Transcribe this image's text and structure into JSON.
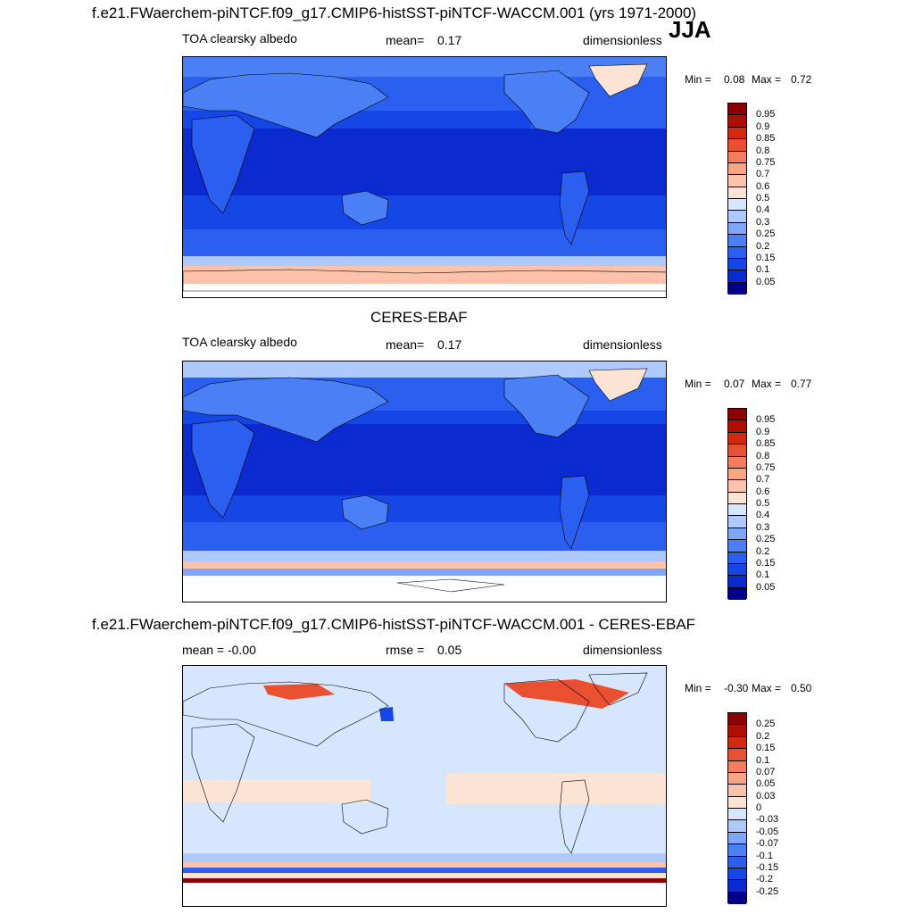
{
  "header": {
    "title": "f.e21.FWaerchem-piNTCF.f09_g17.CMIP6-histSST-piNTCF-WACCM.001 (yrs 1971-2000)",
    "season": "JJA"
  },
  "panels": [
    {
      "id": "model",
      "section_title": "",
      "left": "TOA clearsky albedo",
      "center_label": "mean=",
      "center_value": "0.17",
      "right": "dimensionless",
      "min_label": "Min =",
      "min_value": "0.08",
      "max_label": "Max =",
      "max_value": "0.72"
    },
    {
      "id": "obs",
      "section_title": "CERES-EBAF",
      "left": "TOA clearsky albedo",
      "center_label": "mean=",
      "center_value": "0.17",
      "right": "dimensionless",
      "min_label": "Min =",
      "min_value": "0.07",
      "max_label": "Max =",
      "max_value": "0.77"
    },
    {
      "id": "diff",
      "section_title": "f.e21.FWaerchem-piNTCF.f09_g17.CMIP6-histSST-piNTCF-WACCM.001 - CERES-EBAF",
      "left": "mean =  -0.00",
      "center_label": "rmse =",
      "center_value": "0.05",
      "right": "dimensionless",
      "min_label": "Min =",
      "min_value": "-0.30",
      "max_label": "Max =",
      "max_value": "0.50"
    }
  ],
  "chart_data": [
    {
      "type": "heatmap",
      "title": "TOA clearsky albedo",
      "map": "global lat-lon, Pacific-centered",
      "units": "dimensionless",
      "mean": 0.17,
      "min": 0.08,
      "max": 0.72,
      "colorbar_levels": [
        "0.05",
        "0.1",
        "0.15",
        "0.2",
        "0.25",
        "0.3",
        "0.4",
        "0.5",
        "0.6",
        "0.7",
        "0.75",
        "0.8",
        "0.85",
        "0.9",
        "0.95"
      ],
      "colorbar_colors": [
        "#00008b",
        "#0b2ad0",
        "#1546e6",
        "#2a5ff0",
        "#4a7ff6",
        "#7ea7fb",
        "#adc9fd",
        "#d6e6fe",
        "#fde3d3",
        "#fdc3aa",
        "#fba482",
        "#f57c5c",
        "#e9502f",
        "#d2290f",
        "#b00e02",
        "#8b0000"
      ]
    },
    {
      "type": "heatmap",
      "title": "TOA clearsky albedo",
      "map": "global lat-lon, Pacific-centered",
      "units": "dimensionless",
      "mean": 0.17,
      "min": 0.07,
      "max": 0.77,
      "colorbar_levels": [
        "0.05",
        "0.1",
        "0.15",
        "0.2",
        "0.25",
        "0.3",
        "0.4",
        "0.5",
        "0.6",
        "0.7",
        "0.75",
        "0.8",
        "0.85",
        "0.9",
        "0.95"
      ],
      "colorbar_colors": [
        "#00008b",
        "#0b2ad0",
        "#1546e6",
        "#2a5ff0",
        "#4a7ff6",
        "#7ea7fb",
        "#adc9fd",
        "#d6e6fe",
        "#fde3d3",
        "#fdc3aa",
        "#fba482",
        "#f57c5c",
        "#e9502f",
        "#d2290f",
        "#b00e02",
        "#8b0000"
      ]
    },
    {
      "type": "heatmap",
      "title": "",
      "map": "global lat-lon, Pacific-centered",
      "units": "dimensionless",
      "mean": -0.0,
      "rmse": 0.05,
      "min": -0.3,
      "max": 0.5,
      "colorbar_levels": [
        "-0.25",
        "-0.2",
        "-0.15",
        "-0.1",
        "-0.07",
        "-0.05",
        "-0.03",
        "0",
        "0.03",
        "0.05",
        "0.07",
        "0.1",
        "0.15",
        "0.2",
        "0.25"
      ],
      "colorbar_colors": [
        "#00008b",
        "#0b2ad0",
        "#1546e6",
        "#2a5ff0",
        "#4a7ff6",
        "#7ea7fb",
        "#adc9fd",
        "#d6e6fe",
        "#fde3d3",
        "#fdc3aa",
        "#fba482",
        "#f57c5c",
        "#e9502f",
        "#d2290f",
        "#b00e02",
        "#8b0000"
      ]
    }
  ]
}
